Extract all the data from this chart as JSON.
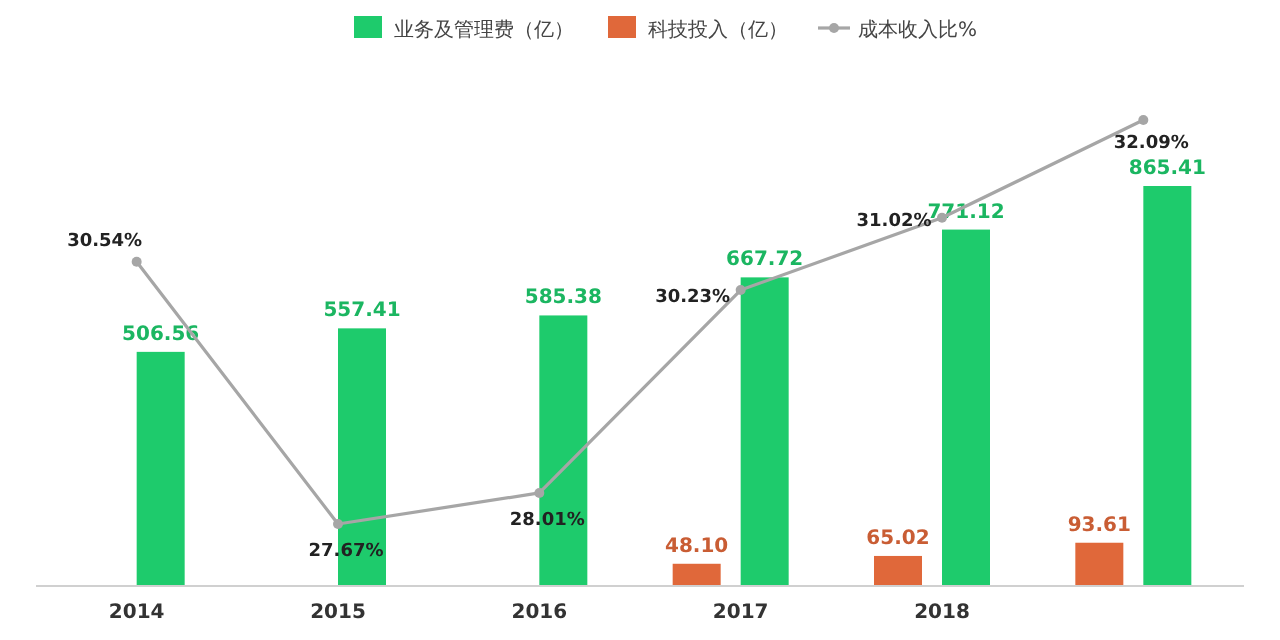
{
  "chart_data": {
    "type": "bar",
    "categories": [
      "2014",
      "2015",
      "2016",
      "2017",
      "2018",
      null
    ],
    "series": [
      {
        "name": "业务及管理费（亿）",
        "color": "#1ecb6c",
        "values": [
          506.56,
          557.41,
          585.38,
          667.72,
          771.12,
          865.41
        ],
        "value_labels": [
          "506.56",
          "557.41",
          "585.38",
          "667.72",
          "771.12",
          "865.41"
        ]
      },
      {
        "name": "科技投入（亿）",
        "color": "#e0683a",
        "values": [
          null,
          null,
          null,
          48.1,
          65.02,
          93.61
        ],
        "value_labels": [
          null,
          null,
          null,
          "48.10",
          "65.02",
          "93.61"
        ]
      },
      {
        "name": "成本收入比%",
        "type": "line",
        "axis": "y2",
        "color": "#a6a6a6",
        "marker": "circle",
        "values": [
          30.54,
          27.67,
          28.01,
          30.23,
          31.02,
          32.09
        ],
        "value_labels": [
          "30.54%",
          "27.67%",
          "28.01%",
          "30.23%",
          "31.02%",
          "32.09%"
        ]
      }
    ],
    "tick_labels": "x",
    "legend": "top",
    "grid": false
  }
}
